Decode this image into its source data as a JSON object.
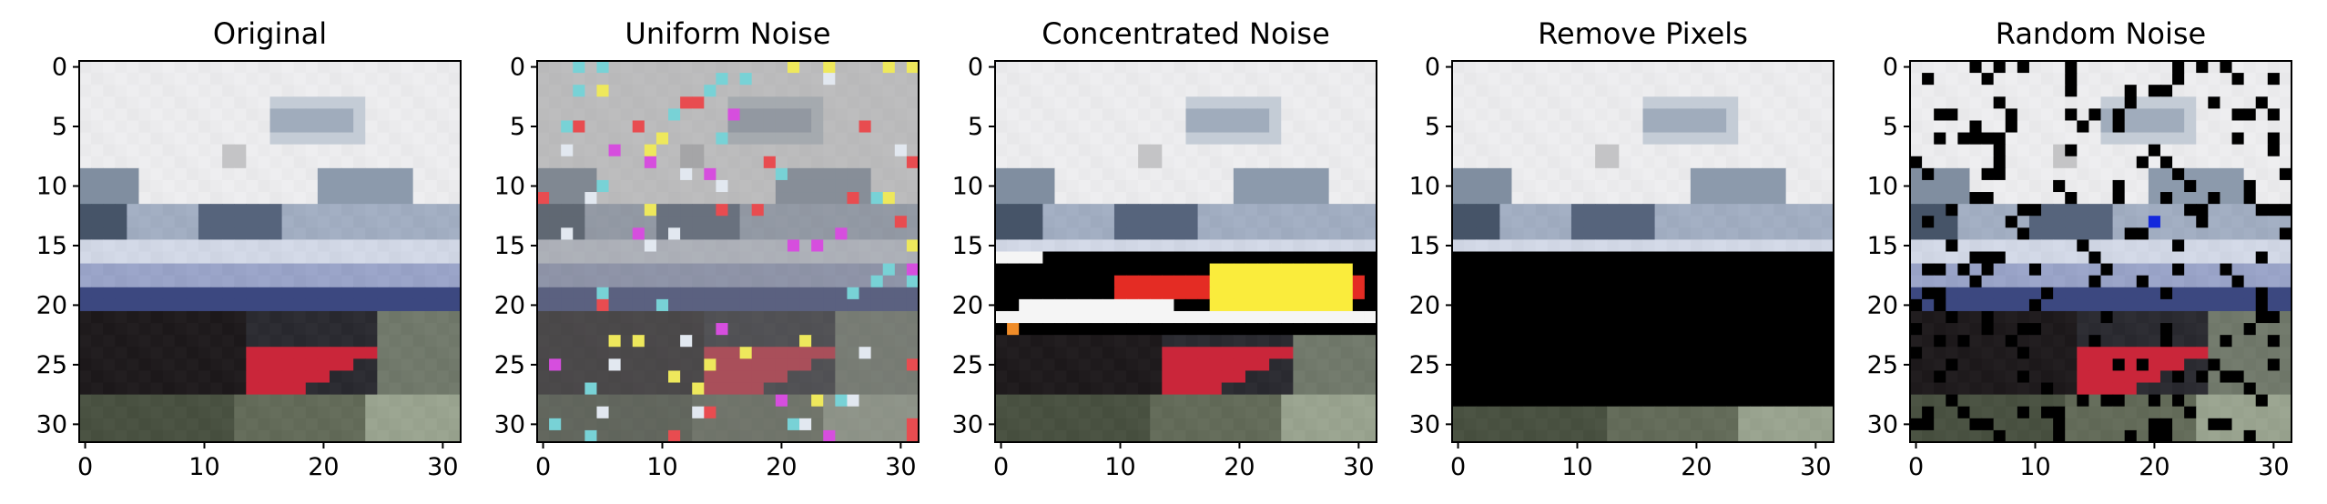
{
  "figure": {
    "background": "#ffffff",
    "image_grid_size": 32
  },
  "chart_data": [
    {
      "type": "image",
      "title": "Original",
      "x_ticks": [
        "0",
        "10",
        "20",
        "30"
      ],
      "y_ticks": [
        "0",
        "5",
        "10",
        "15",
        "20",
        "25",
        "30"
      ],
      "xlim": [
        -0.5,
        31.5
      ],
      "ylim": [
        31.5,
        -0.5
      ],
      "grid": false,
      "content": "CIFAR-style 32x32 photo of a boat"
    },
    {
      "type": "image",
      "title": "Uniform Noise",
      "x_ticks": [
        "0",
        "10",
        "20",
        "30"
      ],
      "y_ticks": [
        "0",
        "5",
        "10",
        "15",
        "20",
        "25",
        "30"
      ],
      "xlim": [
        -0.5,
        31.5
      ],
      "ylim": [
        31.5,
        -0.5
      ],
      "grid": false,
      "content": "boat image with uniformly scattered colored noise pixels"
    },
    {
      "type": "image",
      "title": "Concentrated Noise",
      "x_ticks": [
        "0",
        "10",
        "20",
        "30"
      ],
      "y_ticks": [
        "0",
        "5",
        "10",
        "15",
        "20",
        "25",
        "30"
      ],
      "xlim": [
        -0.5,
        31.5
      ],
      "ylim": [
        31.5,
        -0.5
      ],
      "grid": false,
      "content": "boat image with a concentrated noise band in rows 16-22"
    },
    {
      "type": "image",
      "title": "Remove Pixels",
      "x_ticks": [
        "0",
        "10",
        "20",
        "30"
      ],
      "y_ticks": [
        "0",
        "5",
        "10",
        "15",
        "20",
        "25",
        "30"
      ],
      "xlim": [
        -0.5,
        31.5
      ],
      "ylim": [
        31.5,
        -0.5
      ],
      "grid": false,
      "content": "boat image with rows 16-28 removed (black)"
    },
    {
      "type": "image",
      "title": "Random Noise",
      "x_ticks": [
        "0",
        "10",
        "20",
        "30"
      ],
      "y_ticks": [
        "0",
        "5",
        "10",
        "15",
        "20",
        "25",
        "30"
      ],
      "xlim": [
        -0.5,
        31.5
      ],
      "ylim": [
        31.5,
        -0.5
      ],
      "grid": false,
      "content": "boat image with randomly blacked-out pixels"
    }
  ]
}
